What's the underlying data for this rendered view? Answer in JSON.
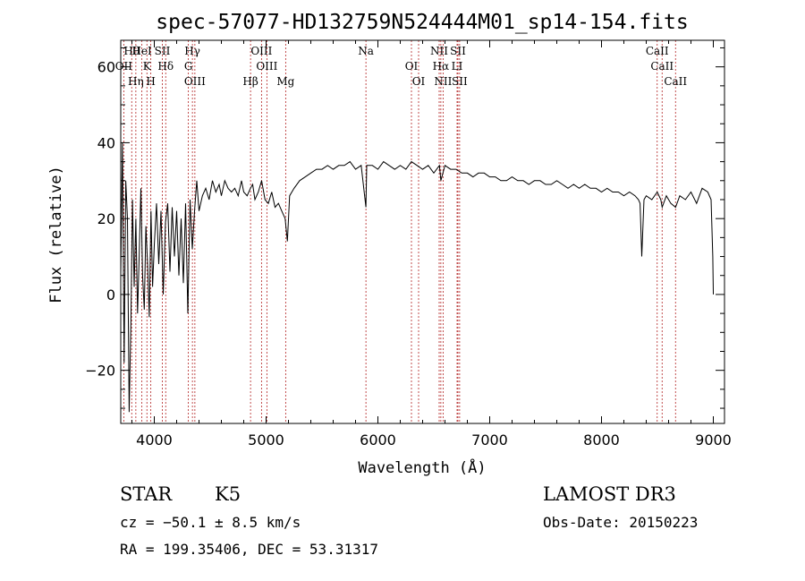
{
  "chart_data": {
    "type": "line",
    "title": "spec-57077-HD132759N524444M01_sp14-154.fits",
    "xlabel": "Wavelength (Å)",
    "ylabel": "Flux (relative)",
    "xlim": [
      3700,
      9100
    ],
    "ylim": [
      -34,
      67
    ],
    "xticks": [
      4000,
      5000,
      6000,
      7000,
      8000,
      9000
    ],
    "xtick_labels": [
      "4000",
      "5000",
      "6000",
      "7000",
      "8000",
      "9000"
    ],
    "yticks": [
      -20,
      0,
      20,
      40,
      60
    ],
    "ytick_labels": [
      "−20",
      "0",
      "20",
      "40",
      "60"
    ],
    "series": [
      {
        "name": "flux",
        "x": [
          3700,
          3715,
          3730,
          3745,
          3760,
          3775,
          3790,
          3805,
          3820,
          3835,
          3850,
          3865,
          3880,
          3895,
          3910,
          3925,
          3940,
          3955,
          3970,
          3985,
          4000,
          4020,
          4040,
          4060,
          4080,
          4100,
          4120,
          4140,
          4160,
          4180,
          4200,
          4220,
          4240,
          4260,
          4280,
          4300,
          4320,
          4340,
          4360,
          4380,
          4400,
          4430,
          4460,
          4490,
          4520,
          4550,
          4580,
          4600,
          4630,
          4660,
          4690,
          4720,
          4750,
          4780,
          4800,
          4830,
          4860,
          4880,
          4900,
          4930,
          4960,
          4990,
          5020,
          5050,
          5080,
          5110,
          5140,
          5170,
          5190,
          5210,
          5250,
          5300,
          5350,
          5400,
          5450,
          5500,
          5550,
          5600,
          5650,
          5700,
          5750,
          5800,
          5850,
          5893,
          5900,
          5950,
          6000,
          6050,
          6100,
          6150,
          6200,
          6250,
          6300,
          6350,
          6400,
          6450,
          6500,
          6550,
          6563,
          6600,
          6650,
          6700,
          6750,
          6800,
          6850,
          6900,
          6950,
          7000,
          7050,
          7100,
          7150,
          7200,
          7250,
          7300,
          7350,
          7400,
          7450,
          7500,
          7550,
          7600,
          7650,
          7700,
          7750,
          7800,
          7850,
          7900,
          7950,
          8000,
          8050,
          8100,
          8150,
          8200,
          8250,
          8300,
          8330,
          8345,
          8360,
          8380,
          8400,
          8450,
          8498,
          8530,
          8542,
          8580,
          8620,
          8662,
          8700,
          8750,
          8800,
          8850,
          8900,
          8950,
          8980,
          8995,
          9000
        ],
        "y": [
          5,
          40,
          -18,
          30,
          20,
          -31,
          -8,
          25,
          2,
          20,
          -5,
          10,
          28,
          5,
          -4,
          18,
          8,
          -6,
          22,
          2,
          13,
          24,
          8,
          22,
          0,
          19,
          24,
          6,
          23,
          10,
          22,
          5,
          20,
          3,
          24,
          -5,
          25,
          12,
          22,
          30,
          22,
          26,
          28,
          25,
          30,
          27,
          29,
          26,
          30,
          28,
          27,
          28,
          26,
          30,
          27,
          26,
          28,
          29,
          25,
          27,
          30,
          25,
          24,
          27,
          23,
          24,
          22,
          20,
          14,
          26,
          28,
          30,
          31,
          32,
          33,
          33,
          34,
          33,
          34,
          34,
          35,
          33,
          34,
          23,
          34,
          34,
          33,
          35,
          34,
          33,
          34,
          33,
          35,
          34,
          33,
          34,
          32,
          34,
          30,
          34,
          33,
          33,
          32,
          32,
          31,
          32,
          32,
          31,
          31,
          30,
          30,
          31,
          30,
          30,
          29,
          30,
          30,
          29,
          29,
          30,
          29,
          28,
          29,
          28,
          29,
          28,
          28,
          27,
          28,
          27,
          27,
          26,
          27,
          26,
          25,
          24,
          10,
          25,
          26,
          25,
          27,
          25,
          23,
          26,
          24,
          23,
          26,
          25,
          27,
          24,
          28,
          27,
          25,
          10,
          0
        ]
      }
    ],
    "emission_lines": [
      {
        "label": "Hθ",
        "wave": 3798
      },
      {
        "label": "OII",
        "wave": 3727
      },
      {
        "label": "Hη",
        "wave": 3835
      },
      {
        "label": "HeI",
        "wave": 3889
      },
      {
        "label": "K",
        "wave": 3934
      },
      {
        "label": "H",
        "wave": 3969
      },
      {
        "label": "SII",
        "wave": 4072
      },
      {
        "label": "Hδ",
        "wave": 4102
      },
      {
        "label": "OIII",
        "wave": 4363
      },
      {
        "label": "Hγ",
        "wave": 4341
      },
      {
        "label": "G",
        "wave": 4305
      },
      {
        "label": "Hβ",
        "wave": 4861
      },
      {
        "label": "OIII",
        "wave": 4959
      },
      {
        "label": "OIII",
        "wave": 5007
      },
      {
        "label": "Mg",
        "wave": 5175
      },
      {
        "label": "Na",
        "wave": 5893
      },
      {
        "label": "OI",
        "wave": 6300
      },
      {
        "label": "OI",
        "wave": 6364
      },
      {
        "label": "NII",
        "wave": 6548
      },
      {
        "label": "Hα",
        "wave": 6563
      },
      {
        "label": "NII",
        "wave": 6583
      },
      {
        "label": "SII",
        "wave": 6716
      },
      {
        "label": "LI",
        "wave": 6708
      },
      {
        "label": "SII",
        "wave": 6731
      },
      {
        "label": "CaII",
        "wave": 8498
      },
      {
        "label": "CaII",
        "wave": 8542
      },
      {
        "label": "CaII",
        "wave": 8662
      }
    ]
  },
  "info": {
    "class_label": "STAR",
    "subclass_label": "K5",
    "survey": "LAMOST DR3",
    "cz": "cz = −50.1 ± 8.5 km/s",
    "obs_date": "Obs-Date: 20150223",
    "radec": "RA = 199.35406, DEC =  53.31317"
  }
}
